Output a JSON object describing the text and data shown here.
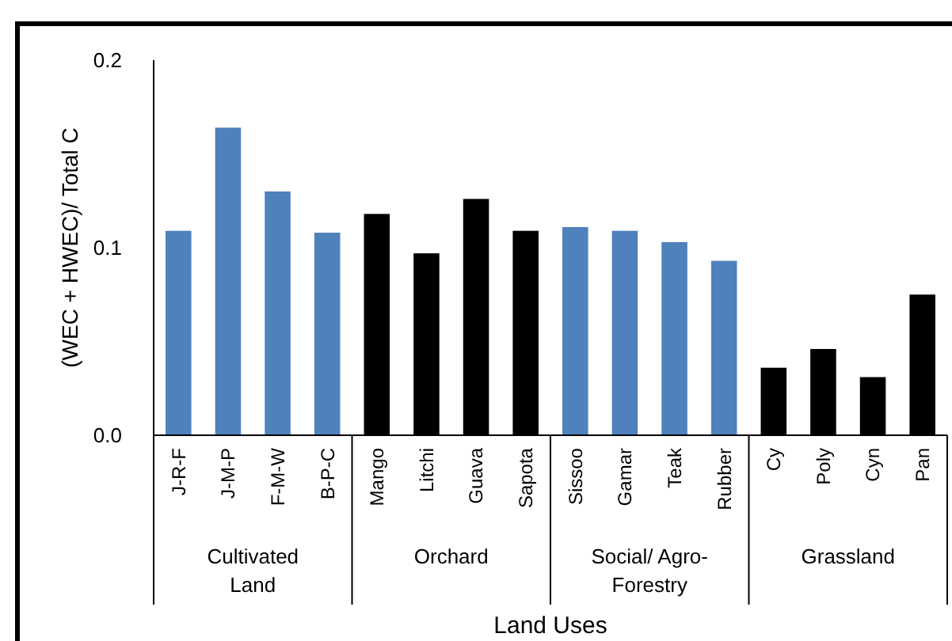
{
  "chart_data": {
    "type": "bar",
    "ylabel": "(WEC + HWEC)/ Total C",
    "xlabel": "Land Uses",
    "categories": [
      "J-R-F",
      "J-M-P",
      "F-M-W",
      "B-P-C",
      "Mango",
      "Litchi",
      "Guava",
      "Sapota",
      "Sissoo",
      "Gamar",
      "Teak",
      "Rubber",
      "Cy",
      "Poly",
      "Cyn",
      "Pan"
    ],
    "values": [
      0.109,
      0.164,
      0.13,
      0.108,
      0.118,
      0.097,
      0.126,
      0.109,
      0.111,
      0.109,
      0.103,
      0.093,
      0.036,
      0.046,
      0.031,
      0.075
    ],
    "colors": [
      "#4f81bd",
      "#4f81bd",
      "#4f81bd",
      "#4f81bd",
      "#000000",
      "#000000",
      "#000000",
      "#000000",
      "#4f81bd",
      "#4f81bd",
      "#4f81bd",
      "#4f81bd",
      "#000000",
      "#000000",
      "#000000",
      "#000000"
    ],
    "annotations": [
      "Cultivated Land",
      "Orchard",
      "Social/ Agro-Forestry",
      "Grassland"
    ],
    "ylim": [
      0,
      0.2
    ],
    "yticks": [
      {
        "value": 0,
        "label": "0.0"
      },
      {
        "value": 0.1,
        "label": "0.1"
      },
      {
        "value": 0.2,
        "label": "0.2"
      }
    ],
    "grid": false
  }
}
